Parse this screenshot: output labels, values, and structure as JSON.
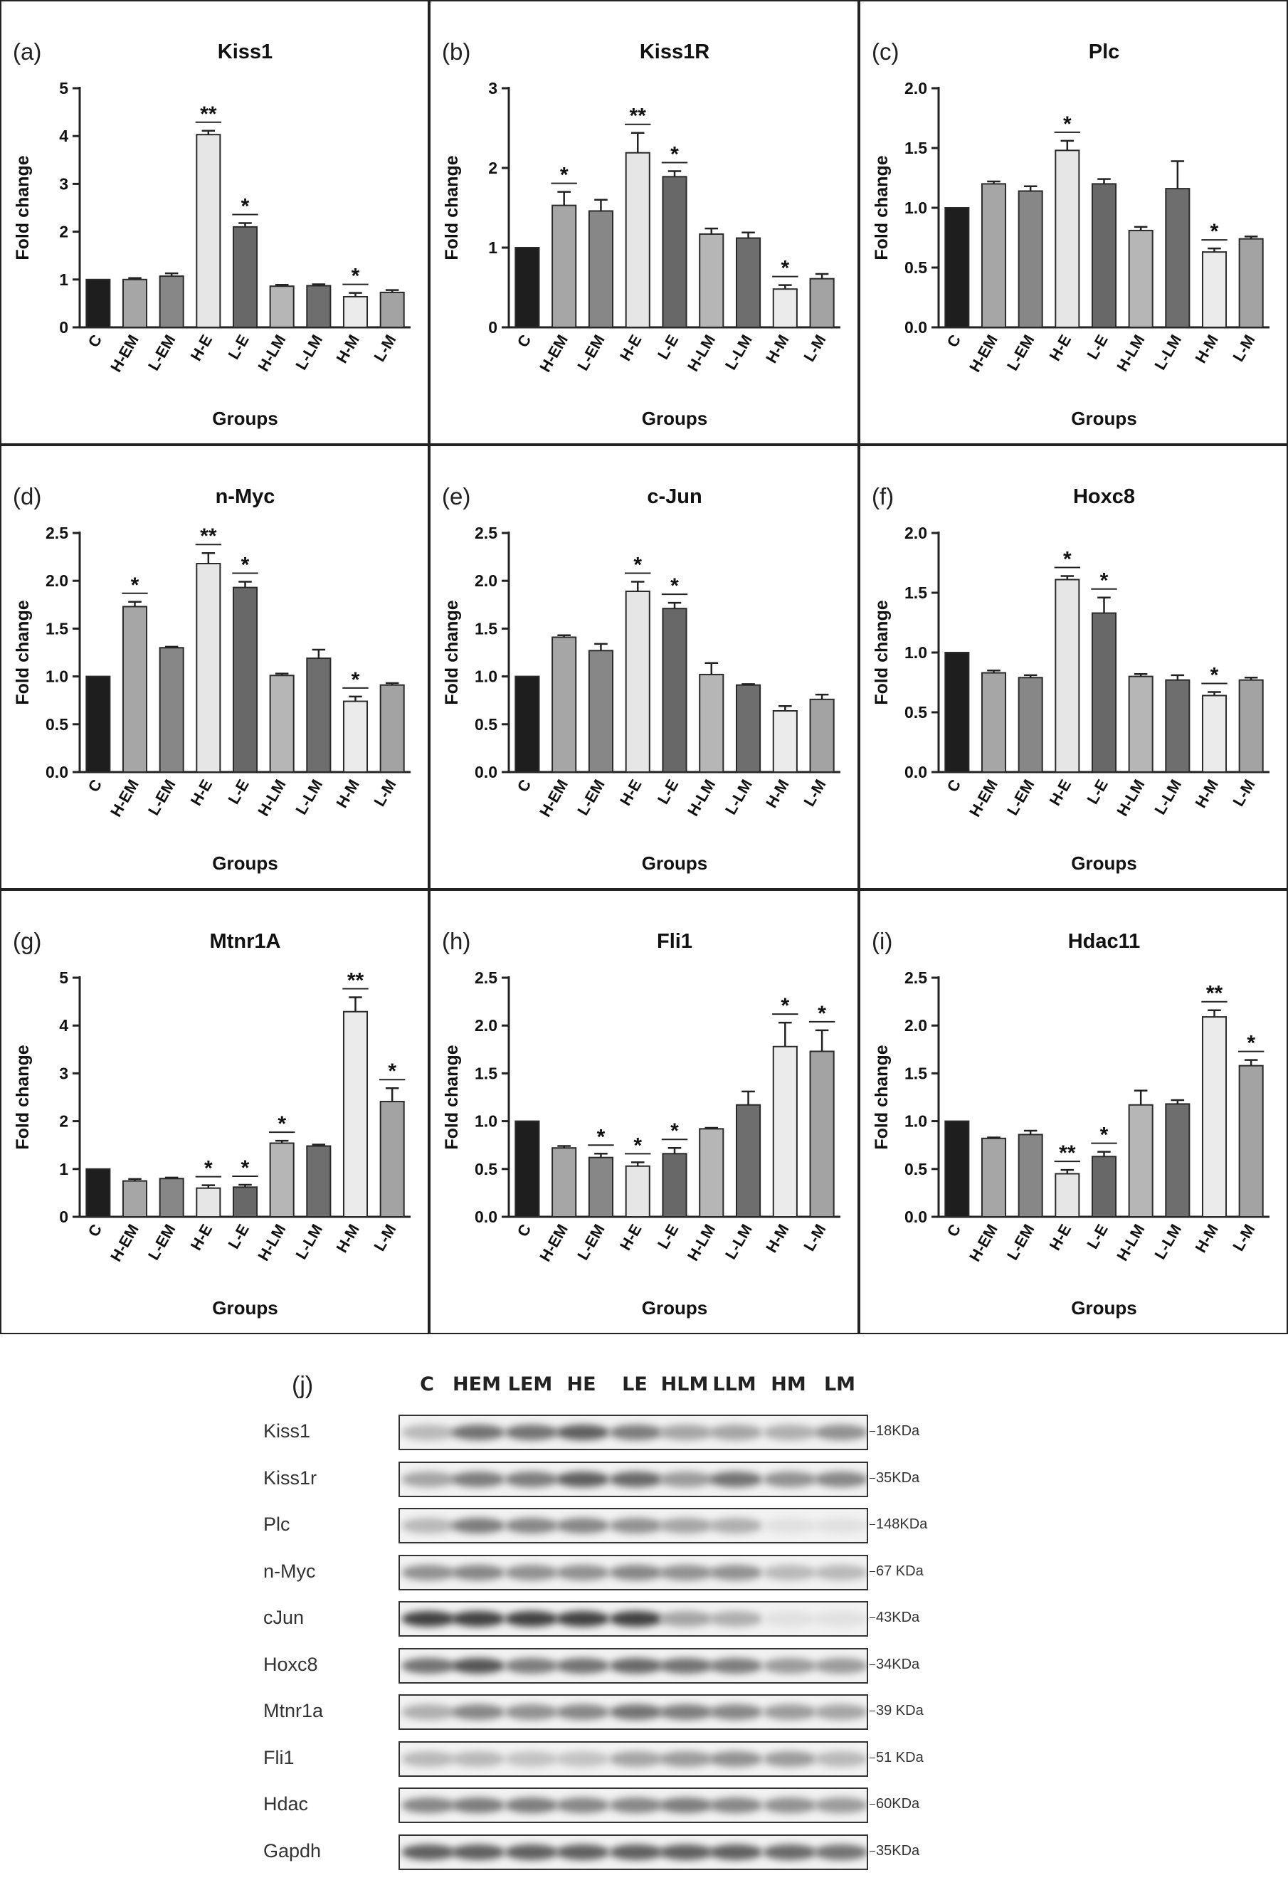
{
  "style": {
    "category_colors": [
      "#1e1e1e",
      "#a6a6a6",
      "#878787",
      "#e6e6e6",
      "#686868",
      "#b6b6b6",
      "#6e6e6e",
      "#ebebeb",
      "#a3a3a3"
    ],
    "edge_color": "#2a2a2a"
  },
  "chart_data": [
    {
      "panel": "(a)",
      "type": "bar",
      "title": "Kiss1",
      "xlabel": "Groups",
      "ylabel": "Fold change",
      "categories": [
        "C",
        "H-EM",
        "L-EM",
        "H-E",
        "L-E",
        "H-LM",
        "L-LM",
        "H-M",
        "L-M"
      ],
      "values": [
        1.0,
        1.0,
        1.07,
        4.03,
        2.1,
        0.86,
        0.87,
        0.64,
        0.73
      ],
      "errors": [
        0,
        0.03,
        0.06,
        0.08,
        0.08,
        0.03,
        0.03,
        0.08,
        0.05
      ],
      "significance": [
        "",
        "",
        "",
        "**",
        "*",
        "",
        "",
        "*",
        ""
      ],
      "ylim": [
        0,
        5
      ],
      "yticks": [
        "0",
        "1",
        "2",
        "3",
        "4",
        "5"
      ]
    },
    {
      "panel": "(b)",
      "type": "bar",
      "title": "Kiss1R",
      "xlabel": "Groups",
      "ylabel": "Fold change",
      "categories": [
        "C",
        "H-EM",
        "L-EM",
        "H-E",
        "L-E",
        "H-LM",
        "L-LM",
        "H-M",
        "L-M"
      ],
      "values": [
        1.0,
        1.53,
        1.46,
        2.19,
        1.89,
        1.17,
        1.12,
        0.48,
        0.61
      ],
      "errors": [
        0,
        0.17,
        0.14,
        0.25,
        0.07,
        0.07,
        0.07,
        0.05,
        0.06
      ],
      "significance": [
        "",
        "*",
        "",
        "**",
        "*",
        "",
        "",
        "*",
        ""
      ],
      "ylim": [
        0,
        3
      ],
      "yticks": [
        "0",
        "1",
        "2",
        "3"
      ]
    },
    {
      "panel": "(c)",
      "type": "bar",
      "title": "Plc",
      "xlabel": "Groups",
      "ylabel": "Fold change",
      "categories": [
        "C",
        "H-EM",
        "L-EM",
        "H-E",
        "L-E",
        "H-LM",
        "L-LM",
        "H-M",
        "L-M"
      ],
      "values": [
        1.0,
        1.2,
        1.14,
        1.48,
        1.2,
        0.81,
        1.16,
        0.63,
        0.74
      ],
      "errors": [
        0,
        0.02,
        0.04,
        0.08,
        0.04,
        0.03,
        0.23,
        0.03,
        0.02
      ],
      "significance": [
        "",
        "",
        "",
        "*",
        "",
        "",
        "",
        "*",
        ""
      ],
      "ylim": [
        0,
        2
      ],
      "yticks": [
        "0.0",
        "0.5",
        "1.0",
        "1.5",
        "2.0"
      ]
    },
    {
      "panel": "(d)",
      "type": "bar",
      "title": "n-Myc",
      "xlabel": "Groups",
      "ylabel": "Fold change",
      "categories": [
        "C",
        "H-EM",
        "L-EM",
        "H-E",
        "L-E",
        "H-LM",
        "L-LM",
        "H-M",
        "L-M"
      ],
      "values": [
        1.0,
        1.73,
        1.3,
        2.18,
        1.93,
        1.01,
        1.19,
        0.74,
        0.91
      ],
      "errors": [
        0,
        0.05,
        0.01,
        0.11,
        0.06,
        0.02,
        0.09,
        0.05,
        0.02
      ],
      "significance": [
        "",
        "*",
        "",
        "**",
        "*",
        "",
        "",
        "*",
        ""
      ],
      "ylim": [
        0,
        2.5
      ],
      "yticks": [
        "0.0",
        "0.5",
        "1.0",
        "1.5",
        "2.0",
        "2.5"
      ]
    },
    {
      "panel": "(e)",
      "type": "bar",
      "title": "c-Jun",
      "xlabel": "Groups",
      "ylabel": "Fold change",
      "categories": [
        "C",
        "H-EM",
        "L-EM",
        "H-E",
        "L-E",
        "H-LM",
        "L-LM",
        "H-M",
        "L-M"
      ],
      "values": [
        1.0,
        1.41,
        1.27,
        1.89,
        1.71,
        1.02,
        0.91,
        0.64,
        0.76
      ],
      "errors": [
        0,
        0.02,
        0.07,
        0.1,
        0.06,
        0.12,
        0.01,
        0.05,
        0.05
      ],
      "significance": [
        "",
        "",
        "",
        "*",
        "*",
        "",
        "",
        "",
        ""
      ],
      "ylim": [
        0,
        2.5
      ],
      "yticks": [
        "0.0",
        "0.5",
        "1.0",
        "1.5",
        "2.0",
        "2.5"
      ]
    },
    {
      "panel": "(f)",
      "type": "bar",
      "title": "Hoxc8",
      "xlabel": "Groups",
      "ylabel": "Fold change",
      "categories": [
        "C",
        "H-EM",
        "L-EM",
        "H-E",
        "L-E",
        "H-LM",
        "L-LM",
        "H-M",
        "L-M"
      ],
      "values": [
        1.0,
        0.83,
        0.79,
        1.61,
        1.33,
        0.8,
        0.77,
        0.64,
        0.77
      ],
      "errors": [
        0,
        0.02,
        0.02,
        0.03,
        0.13,
        0.02,
        0.04,
        0.03,
        0.02
      ],
      "significance": [
        "",
        "",
        "",
        "*",
        "*",
        "",
        "",
        "*",
        ""
      ],
      "ylim": [
        0,
        2
      ],
      "yticks": [
        "0.0",
        "0.5",
        "1.0",
        "1.5",
        "2.0"
      ]
    },
    {
      "panel": "(g)",
      "type": "bar",
      "title": "Mtnr1A",
      "xlabel": "Groups",
      "ylabel": "Fold change",
      "categories": [
        "C",
        "H-EM",
        "L-EM",
        "H-E",
        "L-E",
        "H-LM",
        "L-LM",
        "H-M",
        "L-M"
      ],
      "values": [
        1.0,
        0.75,
        0.8,
        0.6,
        0.62,
        1.54,
        1.48,
        4.29,
        2.41
      ],
      "errors": [
        0,
        0.04,
        0.02,
        0.06,
        0.05,
        0.05,
        0.03,
        0.3,
        0.28
      ],
      "significance": [
        "",
        "",
        "",
        "*",
        "*",
        "*",
        "",
        "**",
        "*"
      ],
      "ylim": [
        0,
        5
      ],
      "yticks": [
        "0",
        "1",
        "2",
        "3",
        "4",
        "5"
      ]
    },
    {
      "panel": "(h)",
      "type": "bar",
      "title": "Fli1",
      "xlabel": "Groups",
      "ylabel": "Fold change",
      "categories": [
        "C",
        "H-EM",
        "L-EM",
        "H-E",
        "L-E",
        "H-LM",
        "L-LM",
        "H-M",
        "L-M"
      ],
      "values": [
        1.0,
        0.72,
        0.62,
        0.53,
        0.66,
        0.92,
        1.17,
        1.78,
        1.73
      ],
      "errors": [
        0,
        0.02,
        0.04,
        0.04,
        0.06,
        0.01,
        0.14,
        0.25,
        0.22
      ],
      "significance": [
        "",
        "",
        "*",
        "*",
        "*",
        "",
        "",
        "*",
        "*"
      ],
      "ylim": [
        0,
        2.5
      ],
      "yticks": [
        "0.0",
        "0.5",
        "1.0",
        "1.5",
        "2.0",
        "2.5"
      ]
    },
    {
      "panel": "(i)",
      "type": "bar",
      "title": "Hdac11",
      "xlabel": "Groups",
      "ylabel": "Fold change",
      "categories": [
        "C",
        "H-EM",
        "L-EM",
        "H-E",
        "L-E",
        "H-LM",
        "L-LM",
        "H-M",
        "L-M"
      ],
      "values": [
        1.0,
        0.82,
        0.86,
        0.45,
        0.63,
        1.17,
        1.18,
        2.09,
        1.58
      ],
      "errors": [
        0,
        0.01,
        0.04,
        0.04,
        0.05,
        0.15,
        0.04,
        0.07,
        0.06
      ],
      "significance": [
        "",
        "",
        "",
        "**",
        "*",
        "",
        "",
        "**",
        "*"
      ],
      "ylim": [
        0,
        2.5
      ],
      "yticks": [
        "0.0",
        "0.5",
        "1.0",
        "1.5",
        "2.0",
        "2.5"
      ]
    }
  ],
  "blot": {
    "label": "(j)",
    "lanes": [
      "C",
      "HEM",
      "LEM",
      "HE",
      "LE",
      "HLM",
      "LLM",
      "HM",
      "LM"
    ],
    "rows": [
      {
        "protein": "Kiss1",
        "size": "18KDa",
        "intensity": [
          0.25,
          0.6,
          0.6,
          0.7,
          0.55,
          0.35,
          0.35,
          0.3,
          0.45
        ]
      },
      {
        "protein": "Kiss1r",
        "size": "35KDa",
        "intensity": [
          0.35,
          0.55,
          0.55,
          0.7,
          0.65,
          0.4,
          0.6,
          0.45,
          0.5
        ]
      },
      {
        "protein": "Plc",
        "size": "148KDa",
        "intensity": [
          0.25,
          0.55,
          0.5,
          0.5,
          0.45,
          0.35,
          0.3,
          0.05,
          0.05
        ]
      },
      {
        "protein": "n-Myc",
        "size": "67 KDa",
        "intensity": [
          0.45,
          0.5,
          0.45,
          0.45,
          0.5,
          0.45,
          0.45,
          0.25,
          0.25
        ]
      },
      {
        "protein": "cJun",
        "size": "43KDa",
        "intensity": [
          0.85,
          0.85,
          0.85,
          0.85,
          0.85,
          0.35,
          0.3,
          0.05,
          0.05
        ]
      },
      {
        "protein": "Hoxc8",
        "size": "34KDa",
        "intensity": [
          0.6,
          0.75,
          0.55,
          0.6,
          0.65,
          0.6,
          0.55,
          0.4,
          0.4
        ]
      },
      {
        "protein": "Mtnr1a",
        "size": "39 KDa",
        "intensity": [
          0.3,
          0.5,
          0.45,
          0.5,
          0.6,
          0.55,
          0.5,
          0.4,
          0.35
        ]
      },
      {
        "protein": "Fli1",
        "size": "51 KDa",
        "intensity": [
          0.25,
          0.25,
          0.2,
          0.2,
          0.35,
          0.4,
          0.45,
          0.4,
          0.25
        ]
      },
      {
        "protein": "Hdac",
        "size": "60KDa",
        "intensity": [
          0.5,
          0.55,
          0.55,
          0.5,
          0.5,
          0.55,
          0.5,
          0.45,
          0.4
        ]
      },
      {
        "protein": "Gapdh",
        "size": "35KDa",
        "intensity": [
          0.7,
          0.7,
          0.7,
          0.7,
          0.7,
          0.7,
          0.7,
          0.65,
          0.6
        ]
      }
    ]
  }
}
